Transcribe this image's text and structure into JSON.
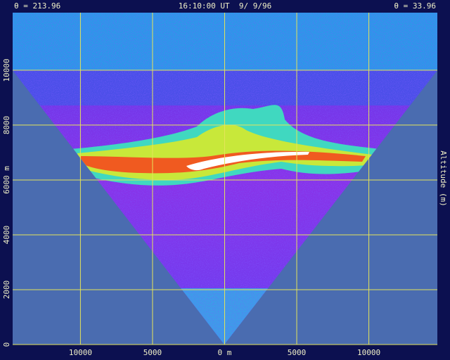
{
  "chart_data": {
    "type": "radar-scan",
    "title": "16:10:00 UT  9/ 9/96",
    "left_annotation": "θ = 213.96",
    "right_annotation": "θ = 33.96",
    "ylabel": "Altitude (m)",
    "xlim": [
      -14700,
      14750
    ],
    "ylim": [
      0,
      12100
    ],
    "xticks": [
      {
        "value": -10000,
        "label": "10000"
      },
      {
        "value": -5000,
        "label": "5000"
      },
      {
        "value": 0,
        "label": "0 m"
      },
      5000,
      10000
    ],
    "yticks": [
      0,
      2000,
      4000,
      {
        "value": 6000,
        "label": "6000 m"
      },
      8000,
      10000
    ],
    "grid": true,
    "grid_color": "#e4e45a"
  }
}
